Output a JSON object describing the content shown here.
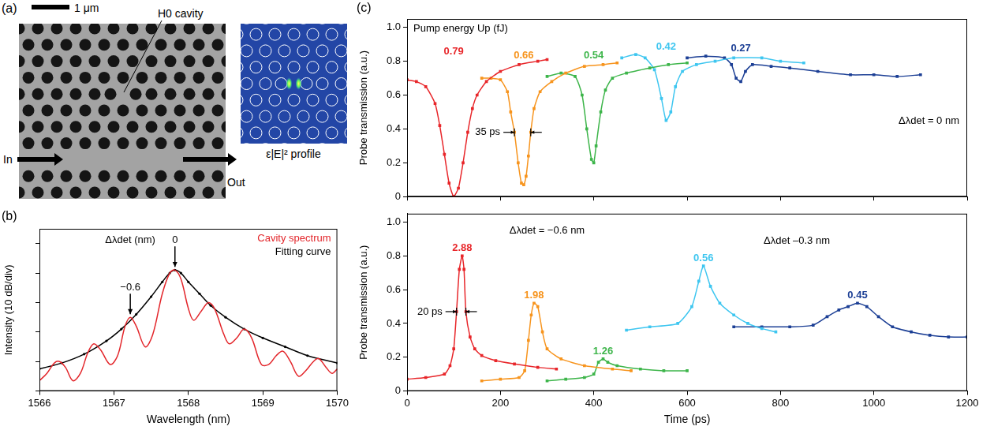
{
  "panel_a": {
    "label": "(a)",
    "scale_bar": "1 μm",
    "cavity_label": "H0 cavity",
    "input_label": "In",
    "output_label": "Out",
    "profile_label": "ε|E|² profile"
  },
  "chart_data": [
    {
      "panel": "(b)",
      "type": "line",
      "xlabel": "Wavelength (nm)",
      "ylabel": "Intensity (10 dB/div)",
      "xlim": [
        1566,
        1570
      ],
      "xticks": [
        1566,
        1567,
        1568,
        1569,
        1570
      ],
      "ylim": [
        0,
        5.5
      ],
      "yticks": [
        0,
        1,
        2,
        3,
        4,
        5
      ],
      "tick_labels": "x",
      "grid": false,
      "legend": "upper right",
      "marker_heading": "Δλdet (nm)",
      "markers": [
        {
          "x": 1567.22,
          "text": "−0.6"
        },
        {
          "x": 1567.82,
          "text": "0"
        }
      ],
      "series": [
        {
          "name": "Cavity spectrum",
          "color": "#e3262b",
          "marker": "none",
          "x": [
            1566.0,
            1566.1,
            1566.2,
            1566.27,
            1566.35,
            1566.45,
            1566.55,
            1566.65,
            1566.73,
            1566.82,
            1566.95,
            1567.05,
            1567.15,
            1567.22,
            1567.3,
            1567.42,
            1567.52,
            1567.65,
            1567.75,
            1567.82,
            1567.9,
            1568.0,
            1568.07,
            1568.17,
            1568.27,
            1568.35,
            1568.48,
            1568.55,
            1568.65,
            1568.75,
            1568.85,
            1568.98,
            1569.08,
            1569.18,
            1569.27,
            1569.37,
            1569.48,
            1569.58,
            1569.68,
            1569.75,
            1569.85,
            1569.93,
            1570.0
          ],
          "values": [
            0.35,
            0.6,
            0.95,
            1.0,
            0.8,
            0.35,
            0.6,
            1.3,
            1.6,
            1.4,
            0.9,
            1.2,
            2.2,
            2.5,
            2.2,
            1.5,
            1.9,
            3.3,
            4.0,
            4.1,
            3.8,
            2.8,
            2.4,
            2.7,
            3.0,
            2.8,
            1.9,
            1.6,
            1.8,
            2.1,
            1.8,
            0.9,
            0.9,
            1.2,
            1.35,
            1.0,
            0.5,
            0.7,
            1.0,
            1.1,
            0.8,
            0.6,
            0.75
          ]
        },
        {
          "name": "Fitting curve",
          "color": "#000000",
          "marker": "circle",
          "x": [
            1566.0,
            1566.3,
            1566.6,
            1566.9,
            1567.1,
            1567.3,
            1567.5,
            1567.65,
            1567.75,
            1567.82,
            1567.9,
            1568.0,
            1568.15,
            1568.3,
            1568.5,
            1568.75,
            1569.0,
            1569.3,
            1569.6,
            1570.0
          ],
          "values": [
            0.75,
            0.95,
            1.25,
            1.7,
            2.1,
            2.6,
            3.2,
            3.7,
            4.0,
            4.1,
            4.0,
            3.7,
            3.3,
            2.9,
            2.5,
            2.1,
            1.8,
            1.5,
            1.2,
            0.95
          ]
        }
      ]
    },
    {
      "panel": "(c)",
      "type": "line",
      "ylabel": "Probe transmission (a.u.)",
      "xlim": [
        0,
        1200
      ],
      "xticks": [
        0,
        200,
        400,
        600,
        800,
        1000,
        1200
      ],
      "ylim": [
        0,
        1.05
      ],
      "yticks": [
        0,
        0.2,
        0.4,
        0.6,
        0.8,
        {
          "value": 1,
          "label": "1.0"
        }
      ],
      "tick_labels": "y",
      "grid": false,
      "marker": "square",
      "series_heading": "Pump energy Up (fJ)",
      "widths": [
        {
          "label": "35 ps",
          "x": [
            230,
            265
          ],
          "y": 0.38
        }
      ],
      "groups": [
        {
          "label": "Δλdet = 0 nm",
          "series": [
            "0.79",
            "0.66",
            "0.54",
            "0.42",
            "0.27"
          ]
        }
      ],
      "series": [
        {
          "name": "0.79",
          "color": "#e8262a",
          "x": [
            0,
            20,
            40,
            60,
            70,
            80,
            90,
            100,
            110,
            120,
            130,
            140,
            150,
            170,
            200,
            240,
            280,
            300
          ],
          "values": [
            0.69,
            0.68,
            0.65,
            0.55,
            0.42,
            0.25,
            0.08,
            0,
            0.05,
            0.2,
            0.38,
            0.52,
            0.6,
            0.68,
            0.74,
            0.78,
            0.8,
            0.81
          ]
        },
        {
          "name": "0.66",
          "color": "#f7941d",
          "x": [
            160,
            180,
            200,
            215,
            222,
            230,
            238,
            245,
            250,
            255,
            260,
            265,
            272,
            285,
            310,
            340,
            380,
            420,
            450
          ],
          "values": [
            0.7,
            0.7,
            0.69,
            0.62,
            0.5,
            0.38,
            0.2,
            0.08,
            0.07,
            0.12,
            0.24,
            0.38,
            0.52,
            0.62,
            0.68,
            0.73,
            0.77,
            0.78,
            0.79
          ]
        },
        {
          "name": "0.54",
          "color": "#3db54a",
          "x": [
            300,
            330,
            360,
            375,
            385,
            395,
            400,
            405,
            415,
            425,
            440,
            470,
            520,
            560,
            600
          ],
          "values": [
            0.71,
            0.73,
            0.71,
            0.6,
            0.4,
            0.22,
            0.2,
            0.3,
            0.5,
            0.63,
            0.7,
            0.73,
            0.76,
            0.78,
            0.79
          ]
        },
        {
          "name": "0.42",
          "color": "#3ec6f0",
          "x": [
            460,
            490,
            510,
            530,
            545,
            555,
            565,
            575,
            590,
            620,
            660,
            700,
            760,
            800,
            850
          ],
          "values": [
            0.82,
            0.84,
            0.82,
            0.75,
            0.58,
            0.45,
            0.5,
            0.65,
            0.74,
            0.78,
            0.8,
            0.82,
            0.82,
            0.8,
            0.79
          ]
        },
        {
          "name": "0.27",
          "color": "#1c3f95",
          "x": [
            600,
            640,
            680,
            695,
            705,
            715,
            725,
            740,
            780,
            820,
            880,
            950,
            1000,
            1050,
            1100
          ],
          "values": [
            0.82,
            0.83,
            0.82,
            0.78,
            0.7,
            0.68,
            0.74,
            0.78,
            0.77,
            0.76,
            0.74,
            0.72,
            0.72,
            0.71,
            0.72
          ]
        }
      ]
    },
    {
      "type": "line",
      "xlabel": "Time (ps)",
      "ylabel": "Probe transmission (a.u.)",
      "xlim": [
        0,
        1200
      ],
      "xticks": [
        0,
        200,
        400,
        600,
        800,
        1000,
        1200
      ],
      "ylim": [
        0,
        1.05
      ],
      "yticks": [
        0,
        0.2,
        0.4,
        0.6,
        0.8,
        {
          "value": 1,
          "label": "1.0"
        }
      ],
      "grid": false,
      "marker": "square",
      "widths": [
        {
          "label": "20 ps",
          "x": [
            106,
            126
          ],
          "y": 0.47
        }
      ],
      "groups": [
        {
          "label": "Δλdet = −0.6 nm",
          "series": [
            "2.88",
            "1.98",
            "1.26"
          ]
        },
        {
          "label": "Δλdet –0.3 nm",
          "series": [
            "0.56",
            "0.45"
          ]
        }
      ],
      "series": [
        {
          "name": "2.88",
          "color": "#e8262a",
          "x": [
            0,
            40,
            80,
            92,
            100,
            106,
            112,
            118,
            122,
            126,
            135,
            145,
            160,
            190,
            230,
            280,
            320
          ],
          "values": [
            0.07,
            0.08,
            0.1,
            0.15,
            0.25,
            0.47,
            0.72,
            0.8,
            0.72,
            0.47,
            0.32,
            0.25,
            0.21,
            0.18,
            0.16,
            0.14,
            0.13
          ]
        },
        {
          "name": "1.98",
          "color": "#f7941d",
          "x": [
            160,
            200,
            240,
            252,
            260,
            266,
            272,
            280,
            290,
            300,
            330,
            380,
            440,
            480
          ],
          "values": [
            0.06,
            0.07,
            0.08,
            0.12,
            0.3,
            0.45,
            0.52,
            0.5,
            0.35,
            0.25,
            0.19,
            0.15,
            0.13,
            0.12
          ]
        },
        {
          "name": "1.26",
          "color": "#3db54a",
          "x": [
            300,
            340,
            380,
            400,
            410,
            420,
            430,
            450,
            500,
            550,
            600
          ],
          "values": [
            0.06,
            0.07,
            0.08,
            0.1,
            0.17,
            0.19,
            0.17,
            0.15,
            0.13,
            0.12,
            0.12
          ]
        },
        {
          "name": "0.56",
          "color": "#3ec6f0",
          "x": [
            470,
            520,
            580,
            610,
            625,
            635,
            650,
            670,
            700,
            730,
            760,
            790
          ],
          "values": [
            0.36,
            0.38,
            0.4,
            0.5,
            0.65,
            0.74,
            0.62,
            0.52,
            0.45,
            0.4,
            0.37,
            0.35
          ]
        },
        {
          "name": "0.45",
          "color": "#1c3f95",
          "x": [
            700,
            760,
            820,
            870,
            900,
            925,
            945,
            965,
            985,
            1010,
            1040,
            1080,
            1120,
            1160,
            1200
          ],
          "values": [
            0.38,
            0.38,
            0.38,
            0.39,
            0.44,
            0.48,
            0.5,
            0.52,
            0.5,
            0.44,
            0.38,
            0.35,
            0.33,
            0.32,
            0.32
          ]
        }
      ]
    }
  ]
}
